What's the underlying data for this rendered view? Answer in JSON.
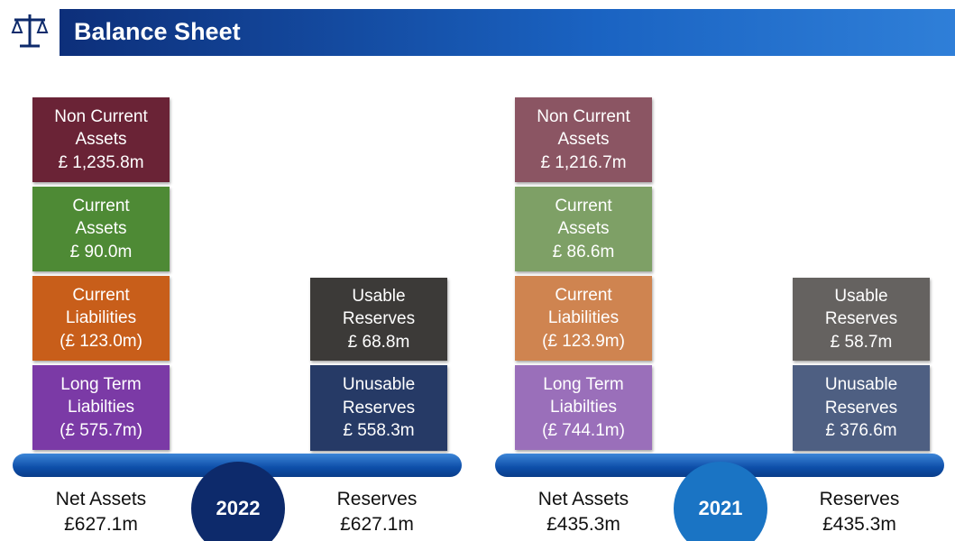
{
  "header": {
    "title": "Balance Sheet"
  },
  "panels": [
    {
      "year": "2022",
      "circle_color": "#0d2a6b",
      "assets": [
        {
          "label_lines": [
            "Non Current",
            "Assets"
          ],
          "value": "£ 1,235.8m",
          "color": "#6a2336"
        },
        {
          "label_lines": [
            "Current",
            "Assets"
          ],
          "value": "£ 90.0m",
          "color": "#4e8a35"
        },
        {
          "label_lines": [
            "Current",
            "Liabilities"
          ],
          "value": "(£ 123.0m)",
          "color": "#c85e1a"
        },
        {
          "label_lines": [
            "Long Term",
            "Liabilties"
          ],
          "value": "(£ 575.7m)",
          "color": "#7b3aa6"
        }
      ],
      "reserves": [
        {
          "label_lines": [
            "Usable",
            "Reserves"
          ],
          "value": "£ 68.8m",
          "color": "#3c3a38"
        },
        {
          "label_lines": [
            "Unusable",
            "Reserves"
          ],
          "value": "£ 558.3m",
          "color": "#263a66"
        }
      ],
      "net_assets": {
        "label": "Net Assets",
        "value": "£627.1m"
      },
      "reserves_total": {
        "label": "Reserves",
        "value": "£627.1m"
      }
    },
    {
      "year": "2021",
      "circle_color": "#1a74c4",
      "assets": [
        {
          "label_lines": [
            "Non Current",
            "Assets"
          ],
          "value": "£ 1,216.7m",
          "color": "#8b5563"
        },
        {
          "label_lines": [
            "Current",
            "Assets"
          ],
          "value": "£ 86.6m",
          "color": "#7ea066"
        },
        {
          "label_lines": [
            "Current",
            "Liabilities"
          ],
          "value": "(£ 123.9m)",
          "color": "#cf8450"
        },
        {
          "label_lines": [
            "Long Term",
            "Liabilties"
          ],
          "value": "(£ 744.1m)",
          "color": "#9a6fba"
        }
      ],
      "reserves": [
        {
          "label_lines": [
            "Usable",
            "Reserves"
          ],
          "value": "£ 58.7m",
          "color": "#656260"
        },
        {
          "label_lines": [
            "Unusable",
            "Reserves"
          ],
          "value": "£ 376.6m",
          "color": "#4e5f82"
        }
      ],
      "net_assets": {
        "label": "Net Assets",
        "value": "£435.3m"
      },
      "reserves_total": {
        "label": "Reserves",
        "value": "£435.3m"
      }
    }
  ]
}
